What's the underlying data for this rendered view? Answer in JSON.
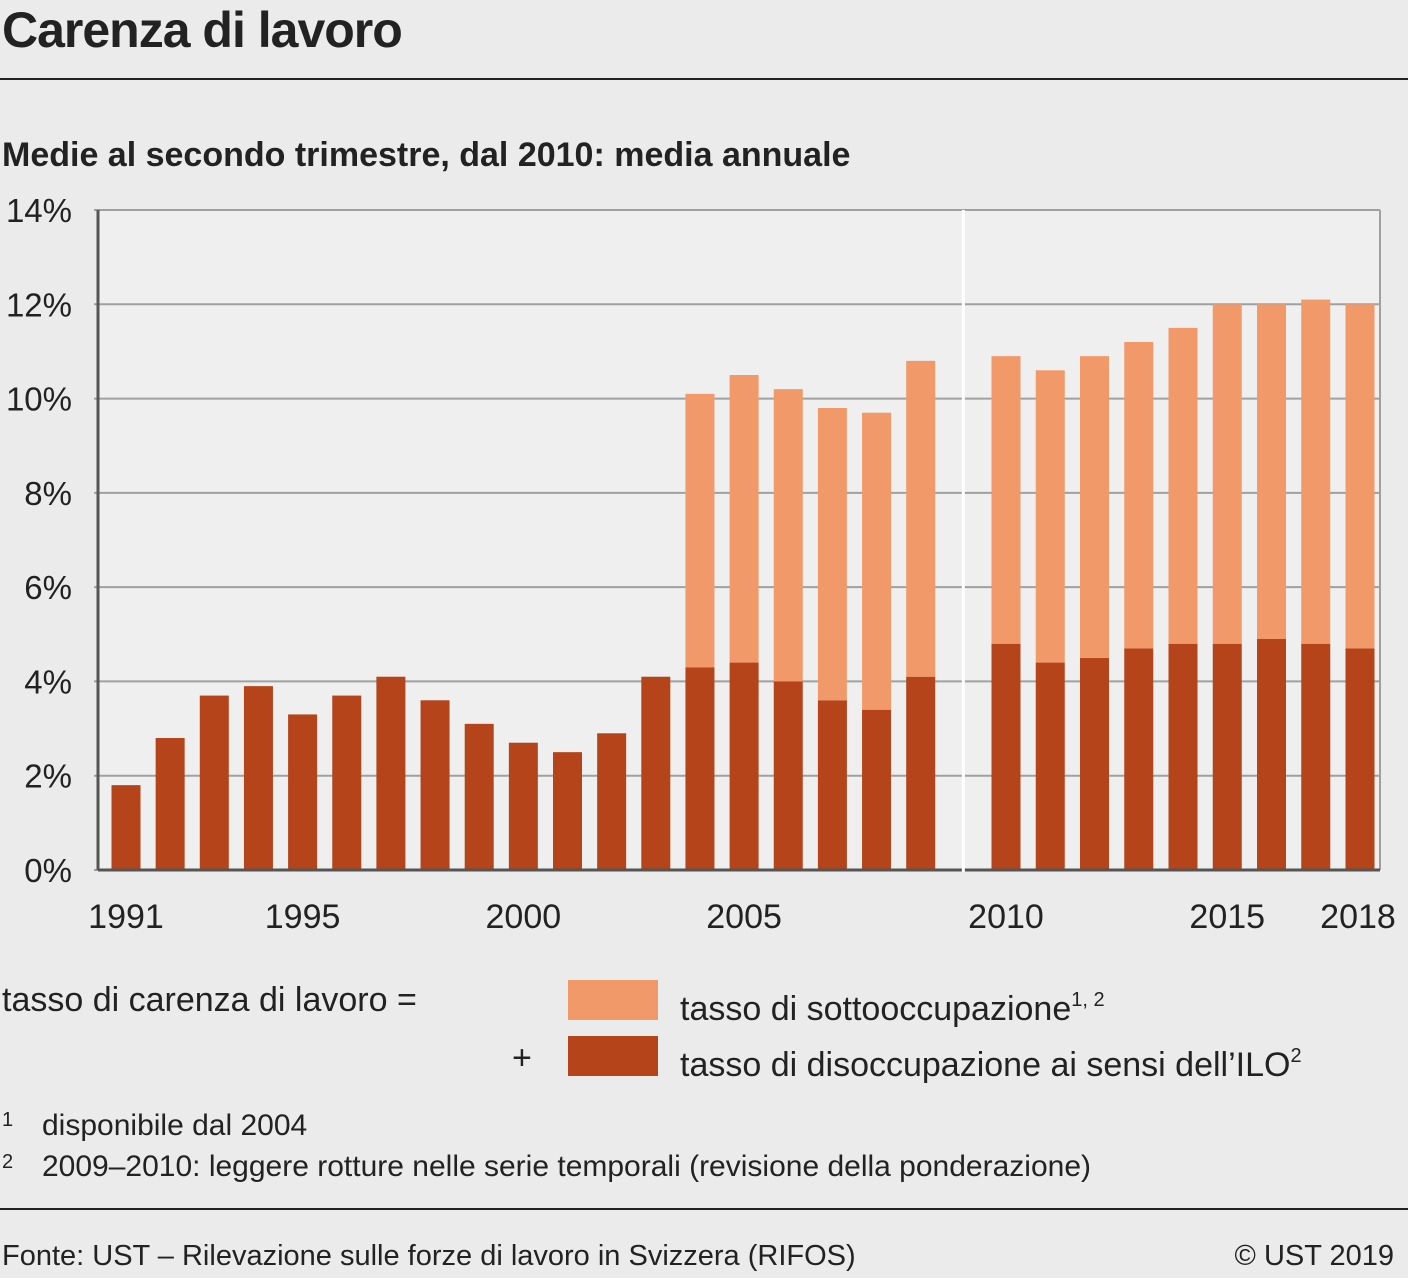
{
  "title": "Carenza di lavoro",
  "subtitle": "Medie al secondo trimestre, dal 2010: media annuale",
  "legend": {
    "equation_label": "tasso di carenza di lavoro =",
    "plus": "+",
    "items": [
      {
        "label": "tasso di sottooccupazione",
        "sup": "1, 2",
        "color": "#f2996a"
      },
      {
        "label": "tasso di disoccupazione ai sensi dell’ILO",
        "sup": "2",
        "color": "#b5441a"
      }
    ]
  },
  "footnotes": [
    {
      "num": "1",
      "text": "disponibile dal 2004"
    },
    {
      "num": "2",
      "text": "2009–2010: leggere rotture nelle serie temporali (revisione della ponderazione)"
    }
  ],
  "source": "Fonte: UST – Rilevazione sulle forze di lavoro in Svizzera (RIFOS)",
  "copyright": "© UST 2019",
  "chart_data": {
    "type": "bar",
    "stacked": true,
    "categories": [
      "1991",
      "1992",
      "1993",
      "1994",
      "1995",
      "1996",
      "1997",
      "1998",
      "1999",
      "2000",
      "2001",
      "2002",
      "2003",
      "2004",
      "2005",
      "2006",
      "2007",
      "2008",
      "2009",
      "2010",
      "2011",
      "2012",
      "2013",
      "2014",
      "2015",
      "2016",
      "2017",
      "2018"
    ],
    "x_tick_labels": [
      "1991",
      "1995",
      "2000",
      "2005",
      "2010",
      "2015",
      "2018"
    ],
    "y_ticks": [
      "0%",
      "2%",
      "4%",
      "6%",
      "8%",
      "10%",
      "12%",
      "14%"
    ],
    "ylim": [
      0,
      14
    ],
    "y_unit": "%",
    "grid": true,
    "series_break_after": "2009",
    "series": [
      {
        "name": "tasso di disoccupazione ai sensi dell’ILO",
        "color": "#b5441a",
        "values": [
          1.8,
          2.8,
          3.7,
          3.9,
          3.3,
          3.7,
          4.1,
          3.6,
          3.1,
          2.7,
          2.5,
          2.9,
          4.1,
          4.3,
          4.4,
          4.0,
          3.6,
          3.4,
          4.1,
          4.8,
          4.4,
          4.5,
          4.7,
          4.8,
          4.8,
          4.9,
          4.8,
          4.7
        ]
      },
      {
        "name": "tasso di sottooccupazione",
        "color": "#f2996a",
        "values": [
          null,
          null,
          null,
          null,
          null,
          null,
          null,
          null,
          null,
          null,
          null,
          null,
          null,
          5.8,
          6.1,
          6.2,
          6.2,
          6.3,
          6.7,
          6.1,
          6.2,
          6.4,
          6.5,
          6.7,
          7.2,
          7.1,
          7.3,
          7.3
        ]
      }
    ],
    "colors": {
      "background": "#ebebeb",
      "plot_background": "#efefef",
      "grid": "#a0a0a0",
      "axis": "#555555"
    }
  }
}
